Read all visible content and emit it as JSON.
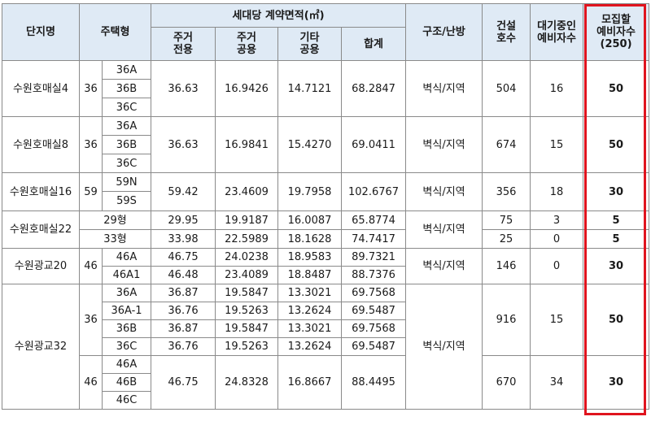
{
  "header": {
    "danji": "단지명",
    "jutaek": "주택형",
    "area_group": "세대당 계약면적(㎡)",
    "jugeo_jeonyong": "주거\n전용",
    "jugeo_gongyong": "주거\n공용",
    "gita_gongyong": "기타\n공용",
    "hapgye": "합계",
    "gujo": "구조/난방",
    "geonseol": "건설\n호수",
    "daegi": "대기중인\n예비자수",
    "mojip": "모집할\n예비자수\n(250)"
  },
  "rows": [
    {
      "name": "수원호매실4",
      "num": "36",
      "types": [
        "36A",
        "36B",
        "36C"
      ],
      "a": "36.63",
      "b": "16.9426",
      "c": "14.7121",
      "sum": "68.2847",
      "struct": "벽식/지역",
      "built": "504",
      "wait": "16",
      "recruit": "50"
    },
    {
      "name": "수원호매실8",
      "num": "36",
      "types": [
        "36A",
        "36B",
        "36C"
      ],
      "a": "36.63",
      "b": "16.9841",
      "c": "15.4270",
      "sum": "69.0411",
      "struct": "벽식/지역",
      "built": "674",
      "wait": "15",
      "recruit": "50"
    },
    {
      "name": "수원호매실16",
      "num": "59",
      "types": [
        "59N",
        "59S"
      ],
      "a": "59.42",
      "b": "23.4609",
      "c": "19.7958",
      "sum": "102.6767",
      "struct": "벽식/지역",
      "built": "356",
      "wait": "18",
      "recruit": "30"
    },
    {
      "name": "수원호매실22",
      "struct": "벽식/지역",
      "subs": [
        {
          "type": "29형",
          "a": "29.95",
          "b": "19.9187",
          "c": "16.0087",
          "sum": "65.8774",
          "built": "75",
          "wait": "3",
          "recruit": "5"
        },
        {
          "type": "33형",
          "a": "33.98",
          "b": "22.5989",
          "c": "18.1628",
          "sum": "74.7417",
          "built": "25",
          "wait": "0",
          "recruit": "5"
        }
      ]
    },
    {
      "name": "수원광교20",
      "num": "46",
      "struct": "벽식/지역",
      "built": "146",
      "wait": "0",
      "recruit": "30",
      "subs": [
        {
          "type": "46A",
          "a": "46.75",
          "b": "24.0238",
          "c": "18.9583",
          "sum": "89.7321"
        },
        {
          "type": "46A1",
          "a": "46.48",
          "b": "23.4089",
          "c": "18.8487",
          "sum": "88.7376"
        }
      ]
    },
    {
      "name": "수원광교32",
      "struct": "벽식/지역",
      "g36": {
        "num": "36",
        "built": "916",
        "wait": "15",
        "recruit": "50",
        "subs": [
          {
            "type": "36A",
            "a": "36.87",
            "b": "19.5847",
            "c": "13.3021",
            "sum": "69.7568"
          },
          {
            "type": "36A-1",
            "a": "36.76",
            "b": "19.5263",
            "c": "13.2624",
            "sum": "69.5487"
          },
          {
            "type": "36B",
            "a": "36.87",
            "b": "19.5847",
            "c": "13.3021",
            "sum": "69.7568"
          },
          {
            "type": "36C",
            "a": "36.76",
            "b": "19.5263",
            "c": "13.2624",
            "sum": "69.5487"
          }
        ]
      },
      "g46": {
        "num": "46",
        "types": [
          "46A",
          "46B",
          "46C"
        ],
        "a": "46.75",
        "b": "24.8328",
        "c": "16.8667",
        "sum": "88.4495",
        "built": "670",
        "wait": "34",
        "recruit": "30"
      }
    }
  ]
}
